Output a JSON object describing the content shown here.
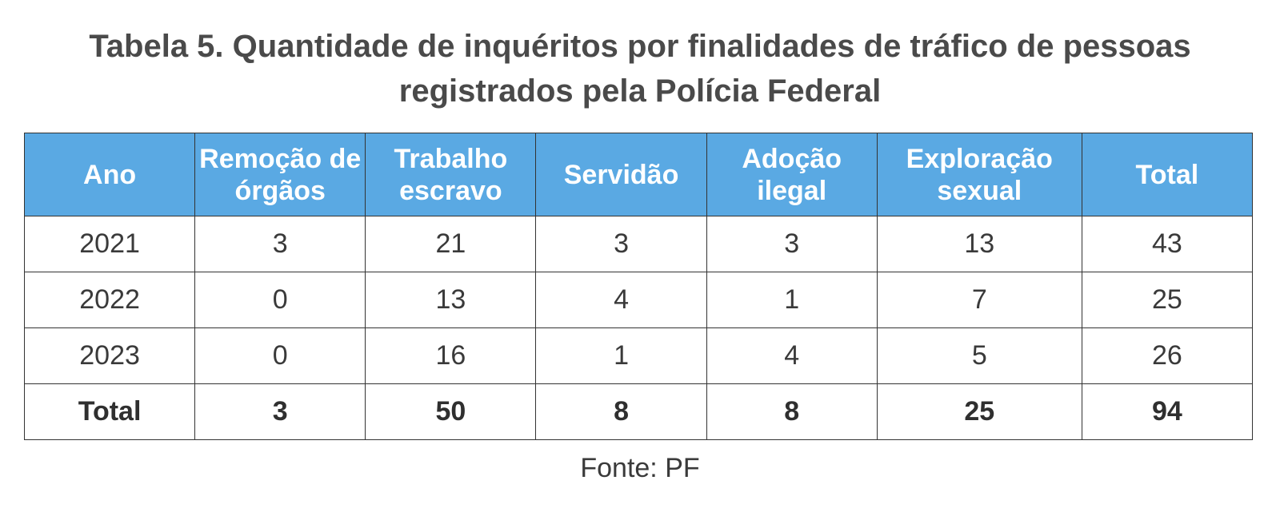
{
  "title": {
    "line1": "Tabela 5. Quantidade de inquéritos por finalidades de tráfico de pessoas",
    "line2": "registrados pela Polícia Federal"
  },
  "table": {
    "headers": [
      "Ano",
      "Remoção de órgãos",
      "Trabalho escravo",
      "Servidão",
      "Adoção ilegal",
      "Exploração sexual",
      "Total"
    ],
    "rows": [
      [
        "2021",
        "3",
        "21",
        "3",
        "3",
        "13",
        "43"
      ],
      [
        "2022",
        "0",
        "13",
        "4",
        "1",
        "7",
        "25"
      ],
      [
        "2023",
        "0",
        "16",
        "1",
        "4",
        "5",
        "26"
      ]
    ],
    "total_row": [
      "Total",
      "3",
      "50",
      "8",
      "8",
      "25",
      "94"
    ]
  },
  "header_color": "#5aa9e3",
  "source": "Fonte: PF"
}
